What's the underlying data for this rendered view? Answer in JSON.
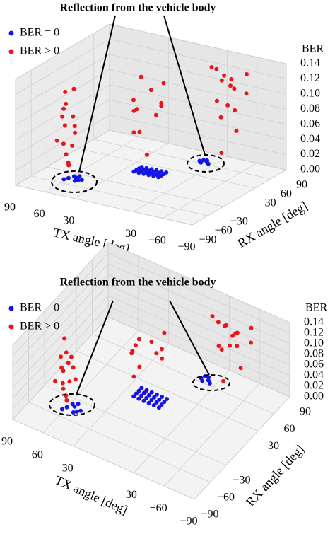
{
  "chart_data": [
    {
      "type": "scatter3d",
      "title": "Reflection from the vehicle body",
      "xlabel": "TX angle [deg]",
      "ylabel": "RX angle [deg]",
      "zlabel": "BER",
      "xlim": [
        -90,
        90
      ],
      "ylim": [
        -90,
        90
      ],
      "zlim": [
        0,
        0.14
      ],
      "xticks": [
        90,
        60,
        30,
        {
          "value": -30,
          "label": "−30"
        },
        {
          "value": -60,
          "label": "−60"
        },
        {
          "value": -90,
          "label": "−90"
        }
      ],
      "yticks": [
        {
          "value": -90,
          "label": "−90"
        },
        {
          "value": -60,
          "label": "−60"
        },
        {
          "value": -30,
          "label": "−30"
        },
        30,
        60,
        90
      ],
      "zticks": [
        {
          "value": 0,
          "label": "0.00"
        },
        {
          "value": 0.02,
          "label": "0.02"
        },
        {
          "value": 0.04,
          "label": "0.04"
        },
        {
          "value": 0.06,
          "label": "0.06"
        },
        {
          "value": 0.08,
          "label": "0.08"
        },
        {
          "value": 0.1,
          "label": "0.10"
        },
        {
          "value": 0.12,
          "label": "0.12"
        },
        {
          "value": 0.14,
          "label": "0.14"
        }
      ],
      "grid": true,
      "series": [
        {
          "name": "BER = 0",
          "color": "#1414e6",
          "x": [
            50,
            55,
            60,
            52,
            58,
            48,
            62,
            54,
            -5,
            0,
            5,
            10,
            15,
            20,
            -5,
            0,
            5,
            10,
            15,
            20,
            -5,
            0,
            5,
            10,
            15,
            20,
            -5,
            0,
            5,
            10,
            15,
            20,
            -18,
            -22,
            -20,
            -15,
            -25,
            -17
          ],
          "y": [
            -45,
            -40,
            -45,
            -48,
            -38,
            -42,
            -50,
            -35,
            5,
            5,
            5,
            5,
            5,
            5,
            10,
            10,
            10,
            10,
            10,
            10,
            15,
            15,
            15,
            15,
            15,
            15,
            20,
            20,
            20,
            20,
            20,
            20,
            62,
            66,
            70,
            65,
            63,
            69
          ],
          "z": [
            0,
            0,
            0,
            0,
            0,
            0,
            0,
            0,
            0,
            0,
            0,
            0,
            0,
            0,
            0,
            0,
            0,
            0,
            0,
            0,
            0,
            0,
            0,
            0,
            0,
            0,
            0,
            0,
            0,
            0,
            0,
            0,
            0,
            0,
            0,
            0,
            0,
            0
          ]
        },
        {
          "name": "BER > 0",
          "color": "#e8161b",
          "x": [
            60,
            65,
            58,
            62,
            55,
            68,
            60,
            63,
            57,
            66,
            54,
            61,
            59,
            64,
            56,
            62,
            10,
            5,
            15,
            0,
            20,
            8,
            12,
            -5,
            18,
            3,
            25,
            -8,
            -30,
            -40,
            -35,
            -45,
            -50,
            -38,
            -55,
            -42,
            -33,
            -48,
            -60,
            -36,
            -44,
            -52,
            -40
          ],
          "y": [
            -50,
            -45,
            -40,
            -48,
            -42,
            -52,
            -38,
            -44,
            -50,
            -40,
            -46,
            -55,
            -35,
            -47,
            -53,
            -41,
            0,
            10,
            -5,
            20,
            5,
            25,
            -10,
            15,
            12,
            -2,
            20,
            5,
            60,
            65,
            70,
            75,
            60,
            55,
            80,
            68,
            72,
            62,
            70,
            58,
            78,
            66,
            60
          ],
          "z": [
            0.1,
            0.09,
            0.08,
            0.07,
            0.06,
            0.05,
            0.04,
            0.03,
            0.02,
            0.11,
            0.12,
            0.085,
            0.065,
            0.045,
            0.025,
            0.015,
            0.13,
            0.11,
            0.1,
            0.09,
            0.08,
            0.07,
            0.06,
            0.12,
            0.05,
            0.03,
            0.075,
            0.095,
            0.13,
            0.12,
            0.11,
            0.1,
            0.12,
            0.09,
            0.12,
            0.08,
            0.06,
            0.11,
            0.1,
            0.13,
            0.07,
            0.05,
            0.02
          ]
        }
      ]
    },
    {
      "type": "scatter3d",
      "title": "Reflection from the vehicle body",
      "xlabel": "TX angle [deg]",
      "ylabel": "RX angle [deg]",
      "zlabel": "BER",
      "xlim": [
        -90,
        90
      ],
      "ylim": [
        -90,
        90
      ],
      "zlim": [
        0,
        0.14
      ],
      "xticks": [
        90,
        60,
        30,
        {
          "value": -30,
          "label": "−30"
        },
        {
          "value": -60,
          "label": "−60"
        },
        {
          "value": -90,
          "label": "−90"
        }
      ],
      "yticks": [
        {
          "value": -90,
          "label": "−90"
        },
        {
          "value": -60,
          "label": "−60"
        },
        {
          "value": -30,
          "label": "−30"
        },
        30,
        60,
        90
      ],
      "zticks": [
        {
          "value": 0,
          "label": "0.00"
        },
        {
          "value": 0.02,
          "label": "0.02"
        },
        {
          "value": 0.04,
          "label": "0.04"
        },
        {
          "value": 0.06,
          "label": "0.06"
        },
        {
          "value": 0.08,
          "label": "0.08"
        },
        {
          "value": 0.1,
          "label": "0.10"
        },
        {
          "value": 0.12,
          "label": "0.12"
        },
        {
          "value": 0.14,
          "label": "0.14"
        }
      ],
      "grid": true,
      "series": [
        {
          "name": "BER = 0",
          "color": "#1414e6",
          "x": [
            50,
            55,
            60,
            52,
            58,
            48,
            62,
            54,
            -5,
            0,
            5,
            10,
            15,
            20,
            -5,
            0,
            5,
            10,
            15,
            20,
            -5,
            0,
            5,
            10,
            15,
            20,
            -5,
            0,
            5,
            10,
            15,
            20,
            -18,
            -22,
            -20,
            -15,
            -25,
            -17
          ],
          "y": [
            -45,
            -40,
            -45,
            -48,
            -38,
            -42,
            -50,
            -35,
            5,
            5,
            5,
            5,
            5,
            5,
            10,
            10,
            10,
            10,
            10,
            10,
            15,
            15,
            15,
            15,
            15,
            15,
            20,
            20,
            20,
            20,
            20,
            20,
            62,
            66,
            70,
            65,
            63,
            69
          ],
          "z": [
            0,
            0,
            0,
            0,
            0,
            0,
            0,
            0,
            0,
            0,
            0,
            0,
            0,
            0,
            0,
            0,
            0,
            0,
            0,
            0,
            0,
            0,
            0,
            0,
            0,
            0,
            0,
            0,
            0,
            0,
            0,
            0,
            0,
            0,
            0,
            0,
            0,
            0
          ]
        },
        {
          "name": "BER > 0",
          "color": "#e8161b",
          "x": [
            58,
            66,
            60,
            62,
            53,
            68,
            61,
            64,
            57,
            65,
            55,
            60,
            59,
            63,
            56,
            63,
            12,
            5,
            16,
            0,
            22,
            8,
            12,
            -5,
            18,
            4,
            26,
            -8,
            -28,
            -40,
            -36,
            -46,
            -52,
            -38,
            -56,
            -42,
            -32,
            -48,
            -62,
            -36,
            -44,
            -54,
            -40
          ],
          "y": [
            -50,
            -45,
            -42,
            -48,
            -42,
            -52,
            -38,
            -44,
            -50,
            -40,
            -46,
            -55,
            -35,
            -47,
            -53,
            -41,
            0,
            10,
            -5,
            20,
            5,
            25,
            -10,
            15,
            12,
            -2,
            20,
            5,
            62,
            65,
            70,
            75,
            60,
            55,
            82,
            68,
            72,
            62,
            70,
            58,
            78,
            66,
            60
          ],
          "z": [
            0.11,
            0.09,
            0.08,
            0.07,
            0.055,
            0.05,
            0.04,
            0.03,
            0.02,
            0.12,
            0.1,
            0.085,
            0.065,
            0.045,
            0.025,
            0.015,
            0.12,
            0.11,
            0.1,
            0.09,
            0.08,
            0.07,
            0.06,
            0.13,
            0.05,
            0.03,
            0.075,
            0.095,
            0.13,
            0.12,
            0.11,
            0.1,
            0.12,
            0.09,
            0.11,
            0.08,
            0.06,
            0.11,
            0.1,
            0.13,
            0.07,
            0.05,
            0.02
          ]
        }
      ]
    }
  ]
}
